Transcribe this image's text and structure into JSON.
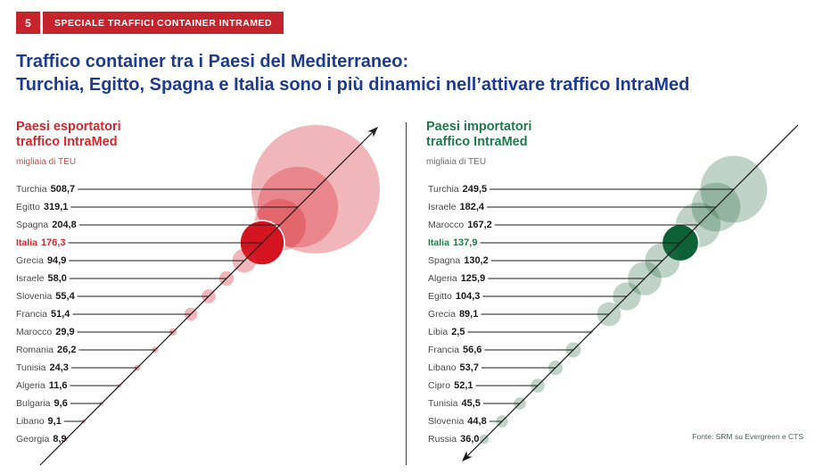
{
  "page": {
    "badge_number": "5",
    "banner_label": "SPECIALE TRAFFICI CONTAINER INTRAMED",
    "title_line1": "Traffico container tra i Paesi del Mediterraneo:",
    "title_line2": "Turchia, Egitto, Spagna e Italia sono i più dinamici nell’attivare traffico IntraMed",
    "source_note": "Fonte: SRM su Evergreen e CTS"
  },
  "colors": {
    "banner_red": "#c5242d",
    "title_blue": "#1d3b90",
    "export_accent": "#d4272e",
    "export_unit": "#cf4a44",
    "export_bubble": "rgba(214,40,50,0.34)",
    "export_highlight": "#d41420",
    "import_accent": "#1f7a4d",
    "import_unit": "#6f6f6f",
    "import_bubble": "rgba(44,108,72,0.30)",
    "import_highlight": "#0d6136",
    "label_gray": "#4a4a4a",
    "value_black": "#1a1a1a",
    "line_black": "#1a1a1a"
  },
  "chart_data": [
    {
      "type": "bubble-diagonal",
      "title_line1": "Paesi esportatori",
      "title_line2": "traffico IntraMed",
      "unit": "migliaia di TEU",
      "highlight": "Italia",
      "arrow_direction": "up-right",
      "legend_position": "left-labels",
      "values": [
        {
          "name": "Turchia",
          "value": 508.7,
          "label": "508,7"
        },
        {
          "name": "Egitto",
          "value": 319.1,
          "label": "319,1"
        },
        {
          "name": "Spagna",
          "value": 204.8,
          "label": "204,8"
        },
        {
          "name": "Italia",
          "value": 176.3,
          "label": "176,3"
        },
        {
          "name": "Grecia",
          "value": 94.9,
          "label": "94,9"
        },
        {
          "name": "Israele",
          "value": 58.0,
          "label": "58,0"
        },
        {
          "name": "Slovenia",
          "value": 55.4,
          "label": "55,4"
        },
        {
          "name": "Francia",
          "value": 51.4,
          "label": "51,4"
        },
        {
          "name": "Marocco",
          "value": 29.9,
          "label": "29,9"
        },
        {
          "name": "Romania",
          "value": 26.2,
          "label": "26,2"
        },
        {
          "name": "Tunisia",
          "value": 24.3,
          "label": "24,3"
        },
        {
          "name": "Algeria",
          "value": 11.6,
          "label": "11,6"
        },
        {
          "name": "Bulgaria",
          "value": 9.6,
          "label": "9,6"
        },
        {
          "name": "Libano",
          "value": 9.1,
          "label": "9,1"
        },
        {
          "name": "Georgia",
          "value": 8.9,
          "label": "8,9"
        }
      ]
    },
    {
      "type": "bubble-diagonal",
      "title_line1": "Paesi importatori",
      "title_line2": "traffico IntraMed",
      "unit": "migliaia di TEU",
      "highlight": "Italia",
      "arrow_direction": "down-left",
      "legend_position": "left-labels",
      "values": [
        {
          "name": "Turchia",
          "value": 249.5,
          "label": "249,5"
        },
        {
          "name": "Israele",
          "value": 182.4,
          "label": "182,4"
        },
        {
          "name": "Marocco",
          "value": 167.2,
          "label": "167,2"
        },
        {
          "name": "Italia",
          "value": 137.9,
          "label": "137,9"
        },
        {
          "name": "Spagna",
          "value": 130.2,
          "label": "130,2"
        },
        {
          "name": "Algeria",
          "value": 125.9,
          "label": "125,9"
        },
        {
          "name": "Egitto",
          "value": 104.3,
          "label": "104,3"
        },
        {
          "name": "Grecia",
          "value": 89.1,
          "label": "89,1"
        },
        {
          "name": "Libia",
          "value": 2.5,
          "label": "2,5"
        },
        {
          "name": "Francia",
          "value": 56.6,
          "label": "56,6"
        },
        {
          "name": "Libano",
          "value": 53.7,
          "label": "53,7"
        },
        {
          "name": "Cipro",
          "value": 52.1,
          "label": "52,1"
        },
        {
          "name": "Tunisia",
          "value": 45.5,
          "label": "45,5"
        },
        {
          "name": "Slovenia",
          "value": 44.8,
          "label": "44,8"
        },
        {
          "name": "Russia",
          "value": 36.0,
          "label": "36,0"
        }
      ]
    }
  ]
}
